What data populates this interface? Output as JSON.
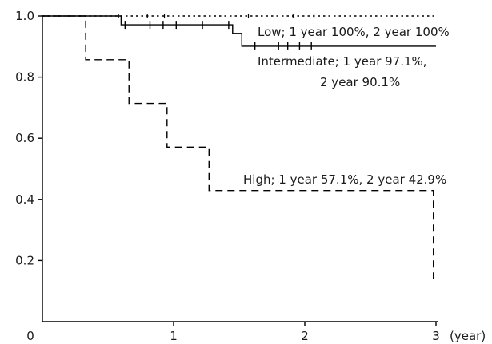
{
  "chart_data": {
    "type": "line",
    "title": "",
    "xlabel": "",
    "ylabel": "",
    "x_unit_label": "(year)",
    "xlim": [
      0,
      3
    ],
    "ylim": [
      0,
      1.0
    ],
    "x_ticks": [
      0,
      1,
      2,
      3
    ],
    "x_tick_labels": [
      "0",
      "1",
      "2",
      "3"
    ],
    "y_ticks": [
      0.2,
      0.4,
      0.6,
      0.8,
      1.0
    ],
    "y_tick_labels": [
      "0.2",
      "0.4",
      "0.6",
      "0.8",
      "1.0"
    ],
    "grid": false,
    "series": [
      {
        "name": "Low",
        "label": "Low; 1 year 100%, 2 year 100%",
        "style": "dotted",
        "color": "#000000",
        "x": [
          0,
          3
        ],
        "y": [
          1.0,
          1.0
        ],
        "censor_x": []
      },
      {
        "name": "Intermediate",
        "label_lines": [
          "Intermediate; 1 year 97.1%,",
          "2 year 90.1%"
        ],
        "style": "solid",
        "color": "#000000",
        "x": [
          0,
          0.6,
          1.45,
          1.52,
          3
        ],
        "y": [
          1.0,
          0.971,
          0.943,
          0.901,
          0.901
        ],
        "censor_x": [
          0.63,
          0.82,
          0.92,
          1.02,
          1.22,
          1.42,
          1.62,
          1.8,
          1.87,
          1.96,
          2.05
        ]
      },
      {
        "name": "High",
        "label": "High; 1 year 57.1%, 2 year 42.9%",
        "style": "dashed",
        "color": "#000000",
        "x": [
          0,
          0.33,
          0.66,
          0.95,
          1.27,
          2.98
        ],
        "y": [
          1.0,
          0.857,
          0.714,
          0.571,
          0.429,
          0.14
        ],
        "censor_x": []
      }
    ]
  }
}
